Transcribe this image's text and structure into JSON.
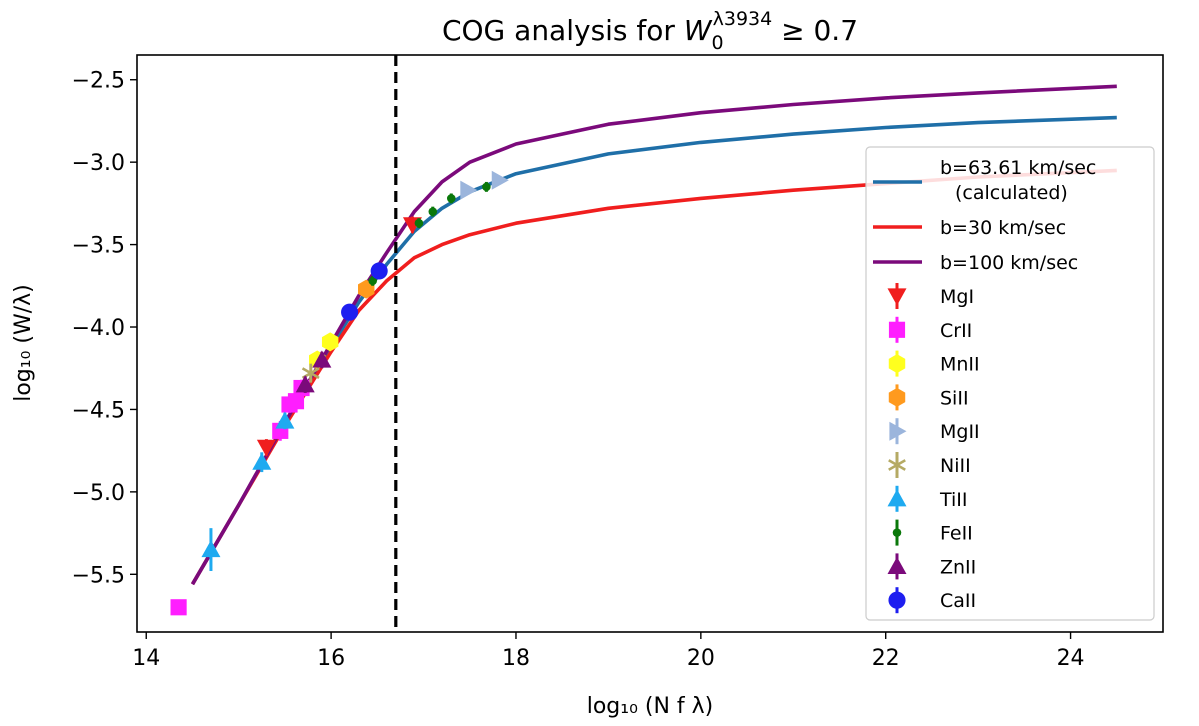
{
  "chart_data": {
    "type": "line+scatter",
    "title_prefix": "COG analysis for ",
    "title_symbol": "W",
    "title_sub": "0",
    "title_sup": "λ3934",
    "title_suffix": " ≥ 0.7",
    "xlabel": "log₁₀ (N f λ)",
    "ylabel": "log₁₀ (W/λ)",
    "xlim": [
      13.9,
      25.0
    ],
    "ylim": [
      -5.85,
      -2.35
    ],
    "xticks": [
      14,
      16,
      18,
      20,
      22,
      24
    ],
    "xtick_labels": [
      "14",
      "16",
      "18",
      "20",
      "22",
      "24"
    ],
    "yticks": [
      -5.5,
      -5.0,
      -4.5,
      -4.0,
      -3.5,
      -3.0,
      -2.5
    ],
    "ytick_labels": [
      "−5.5",
      "−5.0",
      "−4.5",
      "−4.0",
      "−3.5",
      "−3.0",
      "−2.5"
    ],
    "vline": {
      "x": 16.7,
      "style": "dashed",
      "color": "#000000"
    },
    "curves": [
      {
        "name": "b=63.61 km/sec",
        "name_line2": "(calculated)",
        "color": "#1f6fa8",
        "points": [
          [
            14.5,
            -5.56
          ],
          [
            15,
            -5.08
          ],
          [
            15.5,
            -4.59
          ],
          [
            16,
            -4.12
          ],
          [
            16.3,
            -3.85
          ],
          [
            16.6,
            -3.62
          ],
          [
            16.9,
            -3.42
          ],
          [
            17.2,
            -3.28
          ],
          [
            17.5,
            -3.18
          ],
          [
            18,
            -3.07
          ],
          [
            19,
            -2.95
          ],
          [
            20,
            -2.88
          ],
          [
            21,
            -2.83
          ],
          [
            22,
            -2.79
          ],
          [
            23,
            -2.76
          ],
          [
            24.5,
            -2.73
          ]
        ]
      },
      {
        "name": "b=30 km/sec",
        "color": "#f01e1e",
        "points": [
          [
            14.5,
            -5.56
          ],
          [
            15,
            -5.08
          ],
          [
            15.5,
            -4.6
          ],
          [
            16,
            -4.15
          ],
          [
            16.3,
            -3.9
          ],
          [
            16.6,
            -3.72
          ],
          [
            16.9,
            -3.58
          ],
          [
            17.2,
            -3.5
          ],
          [
            17.5,
            -3.44
          ],
          [
            18,
            -3.37
          ],
          [
            19,
            -3.28
          ],
          [
            20,
            -3.22
          ],
          [
            21,
            -3.17
          ],
          [
            22,
            -3.13
          ],
          [
            23,
            -3.09
          ],
          [
            24.5,
            -3.05
          ]
        ]
      },
      {
        "name": "b=100 km/sec",
        "color": "#7b0a7b",
        "points": [
          [
            14.5,
            -5.56
          ],
          [
            15,
            -5.08
          ],
          [
            15.5,
            -4.58
          ],
          [
            16,
            -4.1
          ],
          [
            16.3,
            -3.81
          ],
          [
            16.6,
            -3.55
          ],
          [
            16.9,
            -3.3
          ],
          [
            17.2,
            -3.12
          ],
          [
            17.5,
            -3.0
          ],
          [
            18,
            -2.89
          ],
          [
            19,
            -2.77
          ],
          [
            20,
            -2.7
          ],
          [
            21,
            -2.65
          ],
          [
            22,
            -2.61
          ],
          [
            23,
            -2.58
          ],
          [
            24.5,
            -2.54
          ]
        ]
      }
    ],
    "series": [
      {
        "name": "MgI",
        "marker": "triangle-down",
        "color": "#f01e1e",
        "points": [
          [
            15.3,
            -4.73,
            0.05
          ],
          [
            16.88,
            -3.38,
            0.05
          ]
        ]
      },
      {
        "name": "CrII",
        "marker": "square",
        "color": "#ff1eff",
        "points": [
          [
            14.35,
            -5.7,
            0
          ],
          [
            15.45,
            -4.63,
            0.06
          ],
          [
            15.55,
            -4.47,
            0.05
          ],
          [
            15.62,
            -4.45,
            0.05
          ],
          [
            15.68,
            -4.37,
            0.05
          ]
        ]
      },
      {
        "name": "MnII",
        "marker": "hexagon",
        "color": "#ffff1e",
        "points": [
          [
            15.85,
            -4.2,
            0.04
          ],
          [
            15.99,
            -4.09,
            0.04
          ]
        ]
      },
      {
        "name": "SiII",
        "marker": "hexagon",
        "color": "#ff9a1e",
        "points": [
          [
            16.38,
            -3.77,
            0.05
          ]
        ]
      },
      {
        "name": "MgII",
        "marker": "triangle-right",
        "color": "#9bb5dc",
        "points": [
          [
            17.48,
            -3.17,
            0
          ],
          [
            17.82,
            -3.11,
            0
          ]
        ]
      },
      {
        "name": "NiII",
        "marker": "asterisk",
        "color": "#b5aa64",
        "points": [
          [
            15.78,
            -4.28,
            0.05
          ]
        ]
      },
      {
        "name": "TiII",
        "marker": "triangle-up",
        "color": "#1eaaf0",
        "points": [
          [
            14.7,
            -5.35,
            0.13
          ],
          [
            15.25,
            -4.82,
            0.06
          ],
          [
            15.5,
            -4.57,
            0.05
          ]
        ]
      },
      {
        "name": "FeII",
        "marker": "point",
        "color": "#0a780a",
        "points": [
          [
            16.45,
            -3.72,
            0.03
          ],
          [
            16.95,
            -3.37,
            0.03
          ],
          [
            17.1,
            -3.3,
            0.03
          ],
          [
            17.3,
            -3.22,
            0.03
          ],
          [
            17.68,
            -3.15,
            0.03
          ]
        ]
      },
      {
        "name": "ZnII",
        "marker": "triangle-up",
        "color": "#7b0a7b",
        "points": [
          [
            15.72,
            -4.35,
            0.05
          ],
          [
            15.9,
            -4.2,
            0.05
          ]
        ]
      },
      {
        "name": "CaII",
        "marker": "circle",
        "color": "#1e1ef0",
        "points": [
          [
            16.2,
            -3.91,
            0.04
          ],
          [
            16.52,
            -3.66,
            0.04
          ]
        ]
      }
    ]
  }
}
